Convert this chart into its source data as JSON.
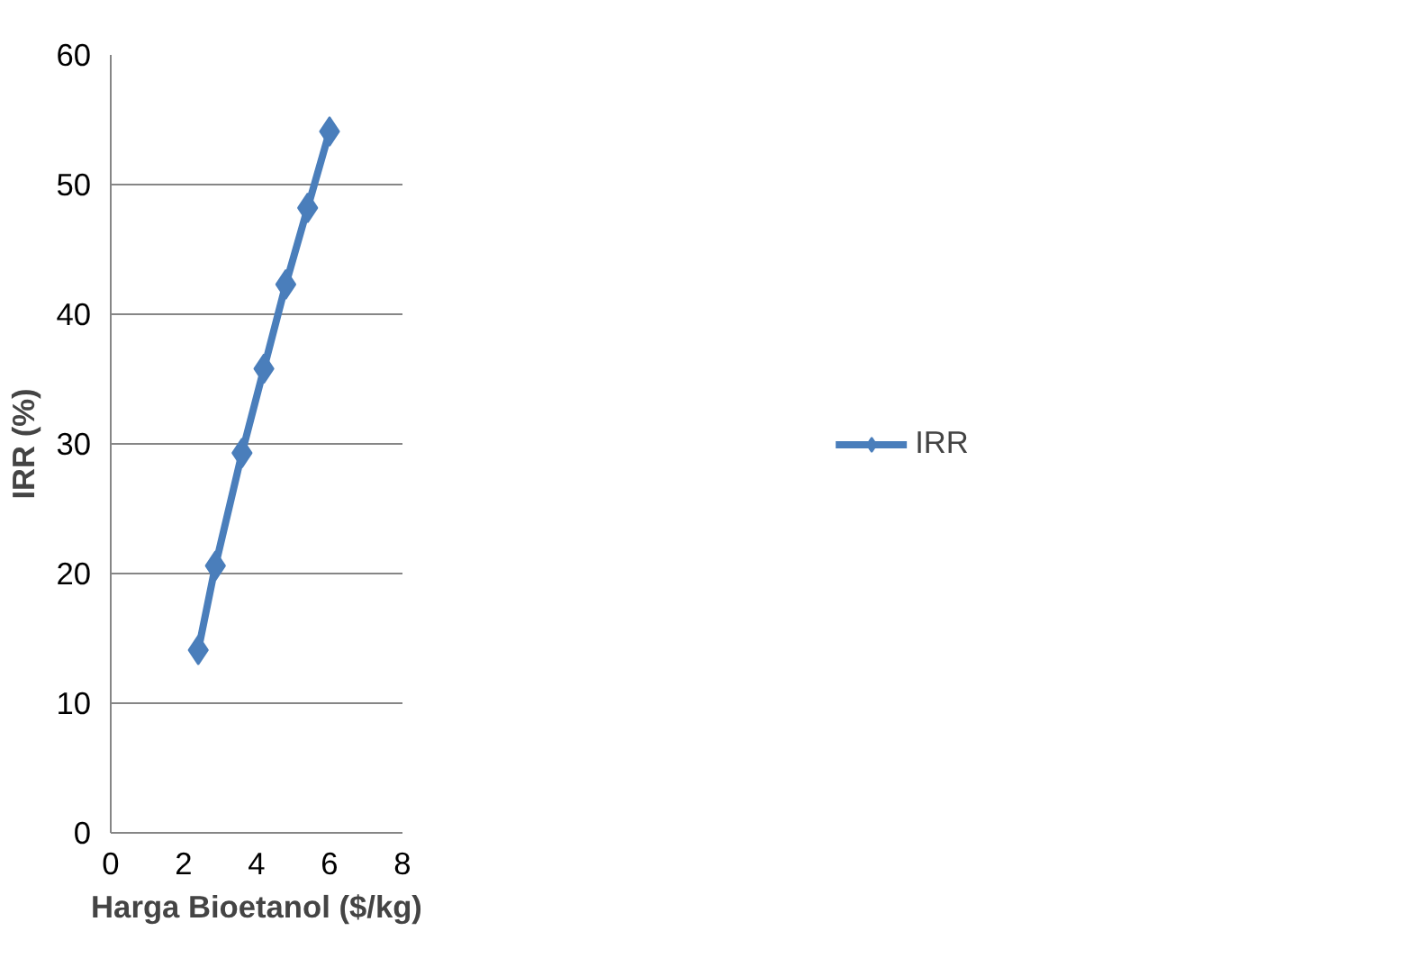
{
  "chart_data": {
    "type": "line",
    "xlabel": "Harga Bioetanol ($/kg)",
    "ylabel": "IRR (%)",
    "series": [
      {
        "name": "IRR",
        "color": "#4a7ebb",
        "x": [
          2.4,
          2.87,
          3.6,
          4.2,
          4.8,
          5.4,
          6.0
        ],
        "values": [
          14.1,
          20.6,
          29.3,
          35.8,
          42.3,
          48.2,
          54.1
        ]
      }
    ],
    "xlim": [
      0,
      8
    ],
    "xticks": [
      0,
      2,
      4,
      6,
      8
    ],
    "ylim": [
      0,
      60
    ],
    "yticks": [
      0,
      10,
      20,
      30,
      40,
      50,
      60
    ],
    "grid": "y",
    "legend": "right",
    "marker": "diamond",
    "line_style": "solid"
  }
}
